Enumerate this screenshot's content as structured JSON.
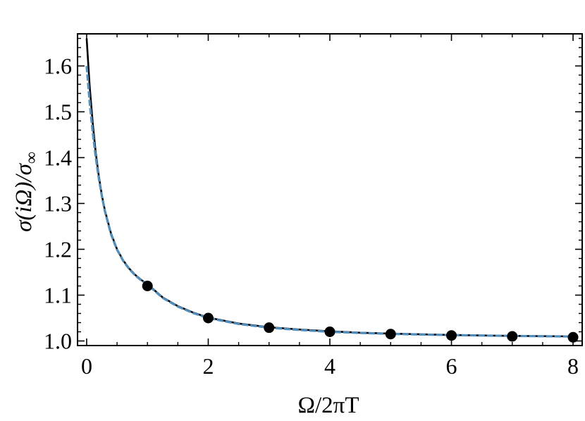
{
  "chart_data": {
    "type": "line",
    "xlabel": "Ω/2πT",
    "ylabel": {
      "main": "σ(iΩ)/σ",
      "subscript": "∞"
    },
    "xlim": [
      -0.15,
      8.15
    ],
    "ylim": [
      0.99,
      1.67
    ],
    "x_ticks": [
      "0",
      "2",
      "4",
      "6",
      "8"
    ],
    "y_ticks": [
      "1.0",
      "1.1",
      "1.2",
      "1.3",
      "1.4",
      "1.5",
      "1.6"
    ],
    "x_minor_step": 0.5,
    "y_minor_step": 0.02,
    "grid": false,
    "series": [
      {
        "style": "solid",
        "color": "#000000",
        "x": [
          0.0,
          0.05,
          0.1,
          0.15,
          0.2,
          0.25,
          0.3,
          0.4,
          0.5,
          0.6,
          0.7,
          0.8,
          0.9,
          1.0,
          1.25,
          1.5,
          1.75,
          2.0,
          2.5,
          3.0,
          3.5,
          4.0,
          4.5,
          5.0,
          5.5,
          6.0,
          6.5,
          7.0,
          7.5,
          8.0
        ],
        "y": [
          1.66,
          1.555,
          1.475,
          1.41,
          1.36,
          1.318,
          1.285,
          1.235,
          1.2,
          1.176,
          1.158,
          1.144,
          1.133,
          1.124,
          1.095,
          1.076,
          1.062,
          1.051,
          1.038,
          1.03,
          1.025,
          1.021,
          1.018,
          1.016,
          1.0145,
          1.013,
          1.012,
          1.011,
          1.0105,
          1.01
        ]
      },
      {
        "style": "dashed",
        "color": "#4f8fbf",
        "x": [
          0.0,
          0.05,
          0.1,
          0.15,
          0.2,
          0.25,
          0.3,
          0.4,
          0.5,
          0.6,
          0.7,
          0.8,
          0.9,
          1.0,
          1.25,
          1.5,
          1.75,
          2.0,
          2.5,
          3.0,
          3.5,
          4.0,
          4.5,
          5.0,
          5.5,
          6.0,
          6.5,
          7.0,
          7.5,
          8.0
        ],
        "y": [
          1.6,
          1.52,
          1.455,
          1.4,
          1.355,
          1.316,
          1.283,
          1.233,
          1.199,
          1.175,
          1.157,
          1.143,
          1.132,
          1.123,
          1.094,
          1.075,
          1.061,
          1.05,
          1.037,
          1.029,
          1.024,
          1.02,
          1.0175,
          1.0155,
          1.014,
          1.0128,
          1.0118,
          1.011,
          1.0103,
          1.0097
        ]
      },
      {
        "style": "points",
        "color": "#000000",
        "x": [
          1,
          2,
          3,
          4,
          5,
          6,
          7,
          8
        ],
        "y": [
          1.12,
          1.05,
          1.029,
          1.02,
          1.015,
          1.012,
          1.01,
          1.008
        ]
      }
    ]
  }
}
